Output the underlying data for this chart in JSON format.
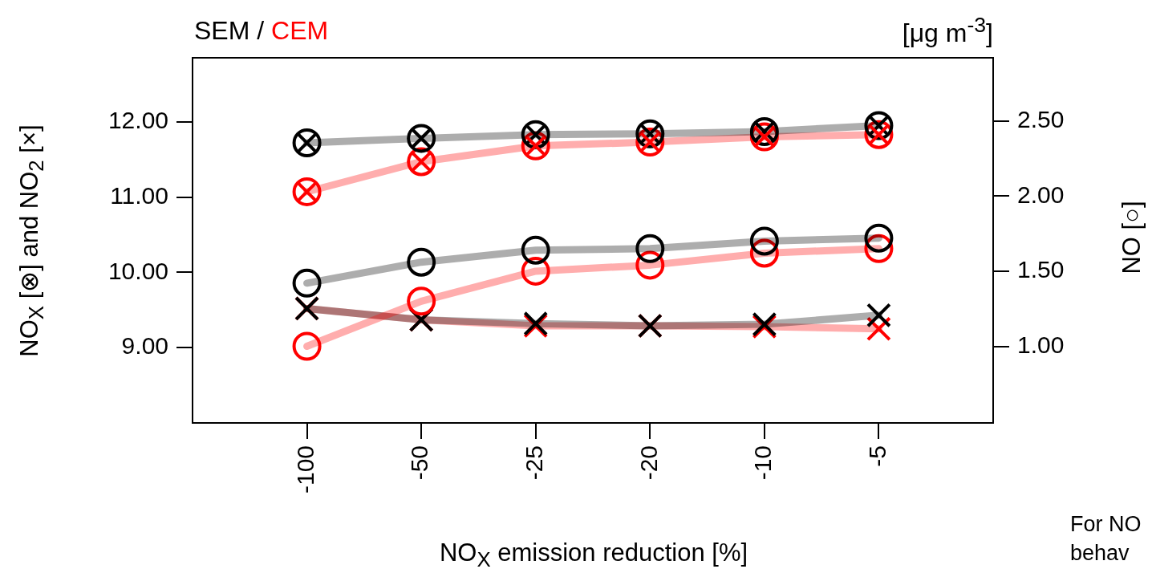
{
  "chart_data": {
    "type": "line",
    "title": "SEM / CEM",
    "xlabel": "NO$_{X}$ emission reduction [%]",
    "ylabel": "NO$_{X}$ [⊗] and NO$_{2}$ [×]",
    "y2label": "NO [○]",
    "annotations": [
      "[μg m$^{-3}$]",
      "For NO",
      "behav"
    ],
    "categories": [
      "-100",
      "-50",
      "-25",
      "-20",
      "-10",
      "-5"
    ],
    "ylim": [
      8.0,
      12.85
    ],
    "yticks": [
      {
        "value": 9,
        "label": "9.00"
      },
      {
        "value": 10,
        "label": "10.00"
      },
      {
        "value": 11,
        "label": "11.00"
      },
      {
        "value": 12,
        "label": "12.00"
      }
    ],
    "y2lim": [
      0.49,
      2.92
    ],
    "y2ticks": [
      {
        "value": 1,
        "label": "1.00"
      },
      {
        "value": 1.5,
        "label": "1.50"
      },
      {
        "value": 2,
        "label": "2.00"
      },
      {
        "value": 2.5,
        "label": "2.50"
      }
    ],
    "grid": false,
    "legend": false,
    "series": [
      {
        "color": "#000000",
        "marker": "circle-cross",
        "values": [
          11.72,
          11.78,
          11.83,
          11.84,
          11.87,
          11.95
        ]
      },
      {
        "color": "#ff0000",
        "marker": "circle-cross",
        "values": [
          11.07,
          11.47,
          11.68,
          11.73,
          11.8,
          11.83
        ]
      },
      {
        "color": "#000000",
        "marker": "circle",
        "axis": "y2",
        "values": [
          1.42,
          1.56,
          1.64,
          1.65,
          1.7,
          1.72
        ]
      },
      {
        "color": "#ff0000",
        "marker": "circle",
        "axis": "y2",
        "values": [
          1.0,
          1.3,
          1.5,
          1.54,
          1.62,
          1.65
        ]
      },
      {
        "color": "#000000",
        "marker": "cross",
        "values": [
          9.52,
          9.37,
          9.32,
          9.29,
          9.31,
          9.43
        ]
      },
      {
        "color": "#ff0000",
        "marker": "cross",
        "values": [
          9.52,
          9.37,
          9.29,
          9.29,
          9.28,
          9.25
        ]
      }
    ]
  }
}
